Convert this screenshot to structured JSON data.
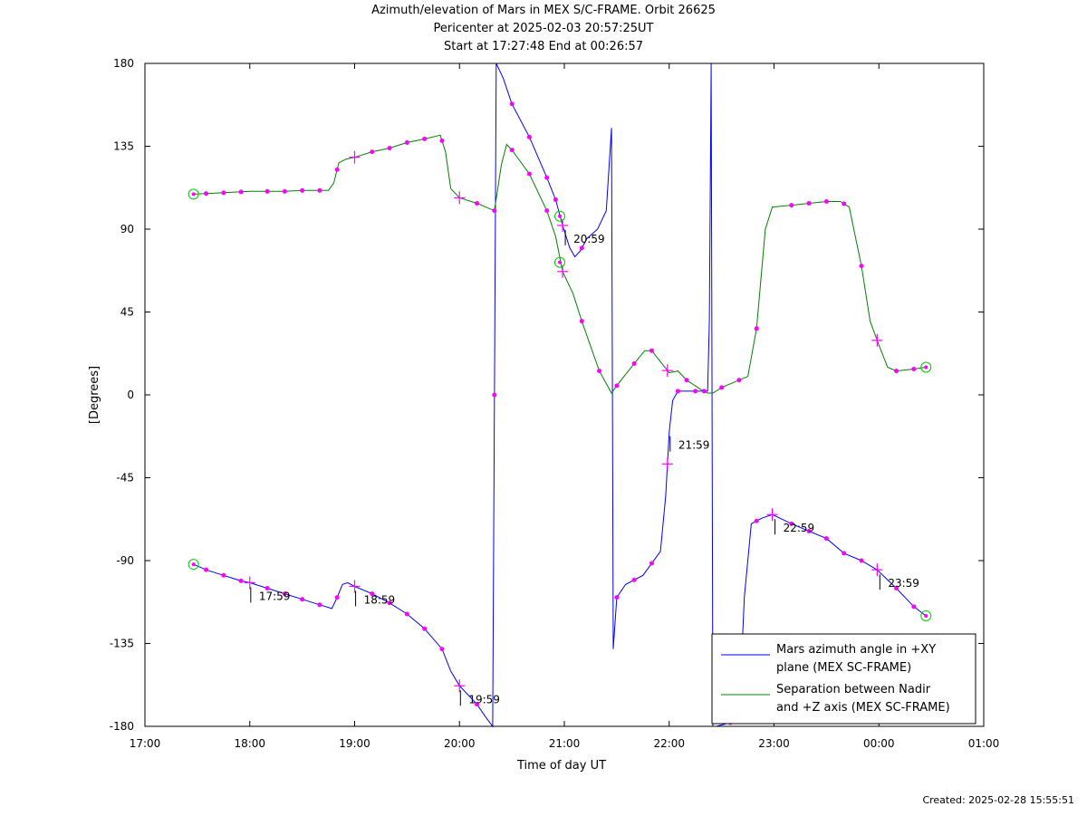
{
  "chart_data": {
    "type": "line",
    "title": "Azimuth/elevation of Mars in MEX S/C-FRAME.  Orbit 26625",
    "subtitle_1": "Pericenter at 2025-02-03 20:57:25UT",
    "subtitle_2": "Start at 17:27:48 End at 00:26:57",
    "xlabel": "Time of day UT",
    "ylabel": "[Degrees]",
    "xlim": [
      "17:00",
      "01:00"
    ],
    "ylim": [
      -180,
      180
    ],
    "x_tick_labels": [
      "17:00",
      "18:00",
      "19:00",
      "20:00",
      "21:00",
      "22:00",
      "23:00",
      "00:00",
      "01:00"
    ],
    "y_tick_labels": [
      "180",
      "135",
      "90",
      "45",
      "0",
      "-45",
      "-90",
      "-135",
      "-180"
    ],
    "legend_position": "bottom-right",
    "grid": false,
    "series": [
      {
        "name": "Mars azimuth angle in +XY plane (MEX SC-FRAME)",
        "legend_line1": "Mars azimuth angle in +XY",
        "legend_line2": "plane (MEX SC-FRAME)",
        "color": "#0000ff",
        "points": [
          [
            "17:27:48",
            -92
          ],
          [
            "17:35",
            -95
          ],
          [
            "17:45",
            -98
          ],
          [
            "17:55",
            -101
          ],
          [
            "18:00",
            -102
          ],
          [
            "18:10",
            -105
          ],
          [
            "18:20",
            -108
          ],
          [
            "18:30",
            -111
          ],
          [
            "18:40",
            -114
          ],
          [
            "18:47",
            -116
          ],
          [
            "18:50",
            -110
          ],
          [
            "18:53",
            -103
          ],
          [
            "18:56",
            -102
          ],
          [
            "19:00",
            -104
          ],
          [
            "19:10",
            -108
          ],
          [
            "19:20",
            -113
          ],
          [
            "19:30",
            -119
          ],
          [
            "19:40",
            -127
          ],
          [
            "19:50",
            -138
          ],
          [
            "19:55",
            -150
          ],
          [
            "20:00",
            -158
          ],
          [
            "20:05",
            -163
          ],
          [
            "20:10",
            -168
          ],
          [
            "20:15",
            -175
          ],
          [
            "20:19",
            -180
          ],
          [
            "20:21",
            180
          ],
          [
            "20:25",
            172
          ],
          [
            "20:30",
            158
          ],
          [
            "20:40",
            140
          ],
          [
            "20:50",
            118
          ],
          [
            "20:55",
            106
          ],
          [
            "20:59",
            92
          ],
          [
            "21:03",
            80
          ],
          [
            "21:06",
            75
          ],
          [
            "21:09",
            78
          ],
          [
            "21:13",
            85
          ],
          [
            "21:19",
            90
          ],
          [
            "21:24",
            100
          ],
          [
            "21:27",
            145
          ],
          [
            "21:27:30",
            0
          ],
          [
            "21:28",
            -138
          ],
          [
            "21:30",
            -110
          ],
          [
            "21:35",
            -103
          ],
          [
            "21:45",
            -98
          ],
          [
            "21:55",
            -85
          ],
          [
            "21:58",
            -55
          ],
          [
            "22:00",
            -20
          ],
          [
            "22:02",
            -3
          ],
          [
            "22:05",
            2
          ],
          [
            "22:15",
            2
          ],
          [
            "22:22",
            2
          ],
          [
            "22:23",
            40
          ],
          [
            "22:24",
            180
          ],
          [
            "22:25",
            -180
          ],
          [
            "22:27",
            -180
          ],
          [
            "22:35",
            -178
          ],
          [
            "22:40",
            -174
          ],
          [
            "22:43",
            -110
          ],
          [
            "22:47",
            -70
          ],
          [
            "22:53",
            -67
          ],
          [
            "22:59",
            -65
          ],
          [
            "23:10",
            -70
          ],
          [
            "23:20",
            -74
          ],
          [
            "23:30",
            -78
          ],
          [
            "23:40",
            -86
          ],
          [
            "23:50",
            -90
          ],
          [
            "23:59",
            -95
          ],
          [
            "00:10",
            -105
          ],
          [
            "00:20",
            -115
          ],
          [
            "00:26:57",
            -120
          ]
        ]
      },
      {
        "name": "Separation between Nadir and +Z axis (MEX SC-FRAME)",
        "legend_line1": "Separation between Nadir",
        "legend_line2": "and +Z axis (MEX SC-FRAME)",
        "color": "#008000",
        "points": [
          [
            "17:27:48",
            109
          ],
          [
            "17:40",
            109.5
          ],
          [
            "17:50",
            110
          ],
          [
            "18:00",
            110.5
          ],
          [
            "18:10",
            110.5
          ],
          [
            "18:20",
            110.5
          ],
          [
            "18:30",
            111
          ],
          [
            "18:40",
            111
          ],
          [
            "18:45",
            111
          ],
          [
            "18:48",
            115
          ],
          [
            "18:51",
            126
          ],
          [
            "18:55",
            128
          ],
          [
            "19:00",
            129
          ],
          [
            "19:10",
            132
          ],
          [
            "19:20",
            134
          ],
          [
            "19:30",
            137
          ],
          [
            "19:40",
            139
          ],
          [
            "19:49",
            141
          ],
          [
            "19:52",
            132
          ],
          [
            "19:55",
            112
          ],
          [
            "20:00",
            107
          ],
          [
            "20:10",
            104
          ],
          [
            "20:15",
            102
          ],
          [
            "20:20",
            100
          ],
          [
            "20:24",
            125
          ],
          [
            "20:27",
            136
          ],
          [
            "20:30",
            133
          ],
          [
            "20:40",
            120
          ],
          [
            "20:50",
            100
          ],
          [
            "20:55",
            86
          ],
          [
            "20:59",
            67
          ],
          [
            "21:05",
            55
          ],
          [
            "21:10",
            40
          ],
          [
            "21:20",
            13
          ],
          [
            "21:27",
            1
          ],
          [
            "21:30",
            5
          ],
          [
            "21:35",
            11
          ],
          [
            "21:40",
            17
          ],
          [
            "21:46",
            24
          ],
          [
            "21:50",
            24
          ],
          [
            "21:55",
            18
          ],
          [
            "22:00",
            12
          ],
          [
            "22:05",
            13
          ],
          [
            "22:10",
            8
          ],
          [
            "22:18",
            3
          ],
          [
            "22:22",
            1
          ],
          [
            "22:25",
            1
          ],
          [
            "22:30",
            4
          ],
          [
            "22:40",
            8
          ],
          [
            "22:45",
            10
          ],
          [
            "22:50",
            36
          ],
          [
            "22:55",
            90
          ],
          [
            "22:59",
            102
          ],
          [
            "23:10",
            103
          ],
          [
            "23:20",
            104
          ],
          [
            "23:30",
            105
          ],
          [
            "23:38",
            105
          ],
          [
            "23:43",
            102
          ],
          [
            "23:50",
            70
          ],
          [
            "23:55",
            40
          ],
          [
            "00:00",
            27
          ],
          [
            "00:05",
            15
          ],
          [
            "00:10",
            13
          ],
          [
            "00:20",
            14
          ],
          [
            "00:26:57",
            15
          ]
        ]
      }
    ],
    "markers": {
      "dots_color": "#ff00ff",
      "start_end_circles_color": "#00cc00",
      "blue_dot_times": [
        "17:35",
        "17:45",
        "17:55",
        "18:10",
        "18:20",
        "18:30",
        "18:40",
        "18:50",
        "19:10",
        "19:20",
        "19:30",
        "19:40",
        "19:50",
        "20:10",
        "20:20",
        "20:30",
        "20:40",
        "20:50",
        "20:55",
        "21:10",
        "21:30",
        "21:40",
        "21:50",
        "22:05",
        "22:15",
        "22:35",
        "22:50",
        "23:10",
        "23:20",
        "23:30",
        "23:40",
        "23:50",
        "00:10",
        "00:20"
      ],
      "green_dot_times": [
        "17:35",
        "17:45",
        "17:55",
        "18:10",
        "18:20",
        "18:30",
        "18:40",
        "18:50",
        "19:10",
        "19:20",
        "19:30",
        "19:40",
        "19:50",
        "20:10",
        "20:20",
        "20:30",
        "20:40",
        "20:50",
        "21:10",
        "21:20",
        "21:30",
        "21:40",
        "21:50",
        "22:10",
        "22:20",
        "22:30",
        "22:40",
        "22:50",
        "23:10",
        "23:20",
        "23:30",
        "23:40",
        "23:50",
        "00:10",
        "00:20"
      ],
      "hour_crosses_blue": [
        "18:00",
        "19:00",
        "20:00",
        "20:59",
        "21:59",
        "22:59",
        "23:59"
      ],
      "hour_crosses_green": [
        "19:00",
        "20:00",
        "20:59",
        "21:59",
        "23:59"
      ],
      "hour_labels": [
        {
          "label": "17:59",
          "time": "17:59",
          "value": -102
        },
        {
          "label": "18:59",
          "time": "18:59",
          "value": -104
        },
        {
          "label": "19:59",
          "time": "19:59",
          "value": -158
        },
        {
          "label": "20:59",
          "time": "20:59",
          "value": 92
        },
        {
          "label": "21:59",
          "time": "21:59",
          "value": -20
        },
        {
          "label": "22:59",
          "time": "22:59",
          "value": -65
        },
        {
          "label": "23:59",
          "time": "23:59",
          "value": -95
        }
      ],
      "circle_points": [
        {
          "time": "17:27:48",
          "value": 109
        },
        {
          "time": "17:27:48",
          "value": -92
        },
        {
          "time": "20:57:25",
          "value": 97
        },
        {
          "time": "20:57:25",
          "value": 72
        },
        {
          "time": "00:26:57",
          "value": 15
        },
        {
          "time": "00:26:57",
          "value": -120
        }
      ]
    }
  },
  "footer": {
    "created": "Created: 2025-02-28 15:55:51"
  }
}
